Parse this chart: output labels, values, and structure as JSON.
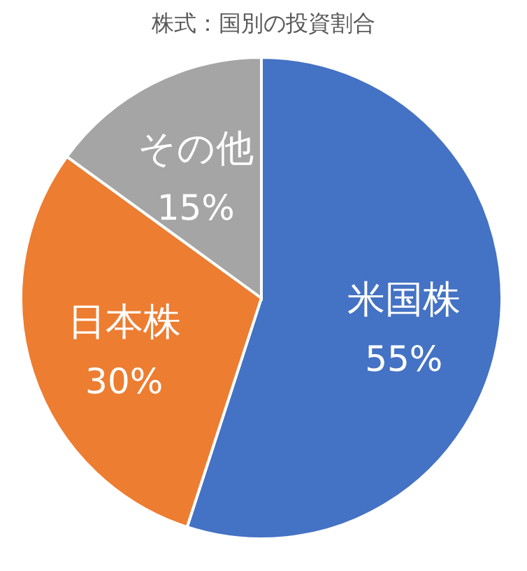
{
  "chart_data": {
    "type": "pie",
    "title": "株式：国別の投資割合",
    "categories": [
      "米国株",
      "日本株",
      "その他"
    ],
    "values": [
      55,
      30,
      15
    ],
    "value_labels": [
      "55%",
      "30%",
      "15%"
    ],
    "colors": [
      "#4472c4",
      "#ed7d31",
      "#a5a5a5"
    ],
    "legend": false
  }
}
